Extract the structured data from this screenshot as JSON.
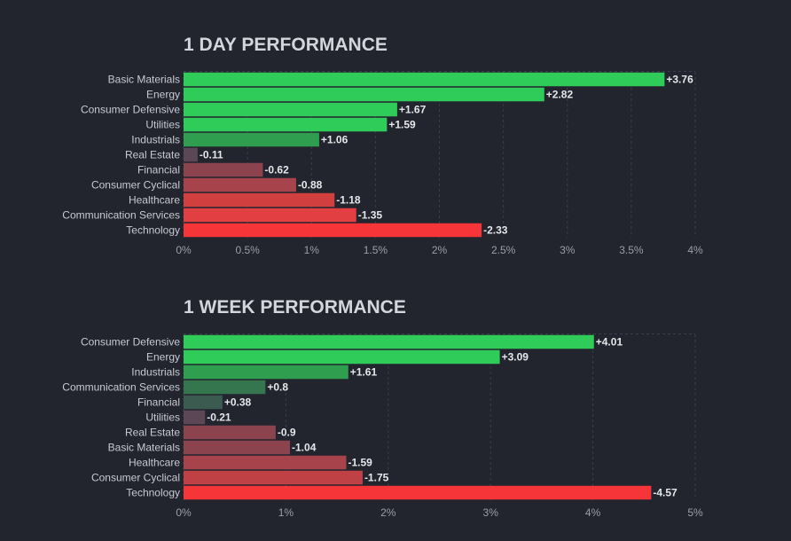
{
  "chart_data": [
    {
      "type": "bar",
      "orientation": "horizontal",
      "title": "1 DAY PERFORMANCE",
      "categories": [
        "Basic Materials",
        "Energy",
        "Consumer Defensive",
        "Utilities",
        "Industrials",
        "Real Estate",
        "Financial",
        "Consumer Cyclical",
        "Healthcare",
        "Communication Services",
        "Technology"
      ],
      "values": [
        3.76,
        2.82,
        1.67,
        1.59,
        1.06,
        -0.11,
        -0.62,
        -0.88,
        -1.18,
        -1.35,
        -2.33
      ],
      "value_labels": [
        "+3.76",
        "+2.82",
        "+1.67",
        "+1.59",
        "+1.06",
        "-0.11",
        "-0.62",
        "-0.88",
        "-1.18",
        "-1.35",
        "-2.33"
      ],
      "xlim": [
        0,
        4
      ],
      "ticks": [
        "0%",
        "0.5%",
        "1%",
        "1.5%",
        "2%",
        "2.5%",
        "3%",
        "3.5%",
        "4%"
      ],
      "bar_colors": [
        "#30cc5a",
        "#30cc5a",
        "#30cc5a",
        "#30cc5a",
        "#2f9e4f",
        "#5c4755",
        "#8b444e",
        "#a6434b",
        "#d1403f",
        "#e13f41",
        "#f63538"
      ],
      "grid": true
    },
    {
      "type": "bar",
      "orientation": "horizontal",
      "title": "1 WEEK PERFORMANCE",
      "categories": [
        "Consumer Defensive",
        "Energy",
        "Industrials",
        "Communication Services",
        "Financial",
        "Utilities",
        "Real Estate",
        "Basic Materials",
        "Healthcare",
        "Consumer Cyclical",
        "Technology"
      ],
      "values": [
        4.01,
        3.09,
        1.61,
        0.8,
        0.38,
        -0.21,
        -0.9,
        -1.04,
        -1.59,
        -1.75,
        -4.57
      ],
      "value_labels": [
        "+4.01",
        "+3.09",
        "+1.61",
        "+0.8",
        "+0.38",
        "-0.21",
        "-0.9",
        "-1.04",
        "-1.59",
        "-1.75",
        "-4.57"
      ],
      "xlim": [
        0,
        5
      ],
      "ticks": [
        "0%",
        "1%",
        "2%",
        "3%",
        "4%",
        "5%"
      ],
      "bar_colors": [
        "#30cc5a",
        "#30cc5a",
        "#2f9e4f",
        "#35764e",
        "#3b5a50",
        "#5c4755",
        "#8b444e",
        "#8b444e",
        "#a6434b",
        "#bf4045",
        "#f63538"
      ],
      "grid": true
    }
  ]
}
